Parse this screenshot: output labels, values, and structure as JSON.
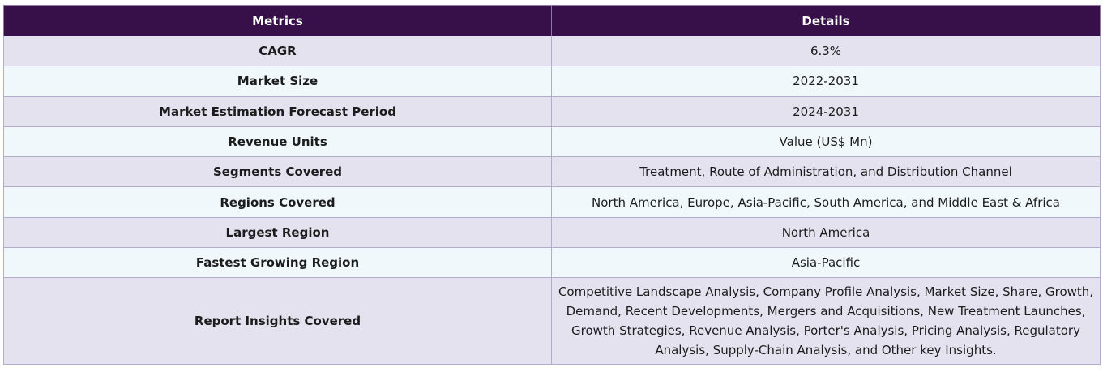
{
  "table": {
    "headers": {
      "metric": "Metrics",
      "detail": "Details"
    },
    "rows": [
      {
        "metric": "CAGR",
        "detail": "6.3%"
      },
      {
        "metric": "Market Size",
        "detail": "2022-2031"
      },
      {
        "metric": "Market Estimation Forecast Period",
        "detail": "2024-2031"
      },
      {
        "metric": "Revenue Units",
        "detail": "Value (US$ Mn)"
      },
      {
        "metric": "Segments Covered",
        "detail": "Treatment, Route of Administration, and Distribution Channel"
      },
      {
        "metric": "Regions Covered",
        "detail": "North America, Europe, Asia-Pacific, South America, and Middle East & Africa"
      },
      {
        "metric": "Largest Region",
        "detail": "North America"
      },
      {
        "metric": "Fastest Growing Region",
        "detail": "Asia-Pacific"
      },
      {
        "metric": "Report Insights Covered",
        "detail": "Competitive Landscape Analysis, Company Profile Analysis, Market Size, Share, Growth, Demand, Recent Developments, Mergers and Acquisitions, New Treatment Launches, Growth Strategies, Revenue Analysis, Porter's Analysis, Pricing Analysis, Regulatory Analysis, Supply-Chain Analysis, and Other key Insights."
      }
    ]
  },
  "colors": {
    "header_bg": "#37104a",
    "row_odd_bg": "#e4e2ee",
    "row_even_bg": "#f1f8fc",
    "border": "#b4acd0"
  }
}
